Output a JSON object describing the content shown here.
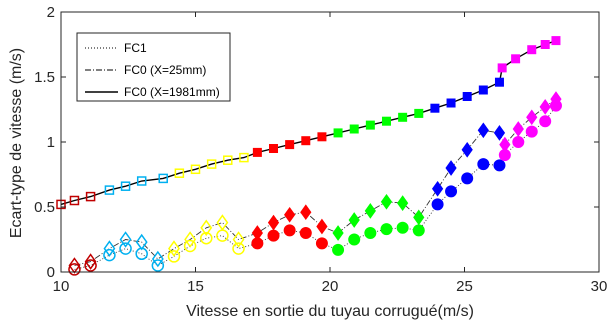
{
  "chart_data": {
    "type": "scatter",
    "title": "",
    "xlabel": "Vitesse en sortie du tuyau corrugué(m/s)",
    "ylabel": "Ecart-type de vitesse (m/s)",
    "xlim": [
      10,
      30
    ],
    "ylim": [
      0,
      2
    ],
    "xticks": [
      "10",
      "15",
      "20",
      "25",
      "30"
    ],
    "yticks": [
      "0",
      "0.5",
      "1",
      "1.5",
      "2"
    ],
    "grid": false,
    "legend_position": "top-left",
    "legend": [
      {
        "label": "FC1",
        "style": "dotted"
      },
      {
        "label": "FC0 (X=25mm)",
        "style": "dash-dot"
      },
      {
        "label": "FC0 (X=1981mm)",
        "style": "solid"
      }
    ],
    "series": [
      {
        "name": "FC0 (X=1981mm)",
        "line": "solid",
        "color": "#000000",
        "x": [
          10.0,
          10.5,
          11.1,
          11.8,
          12.4,
          13.0,
          13.8,
          14.4,
          15.0,
          15.6,
          16.2,
          16.8,
          17.3,
          17.9,
          18.5,
          19.1,
          19.7,
          20.3,
          20.9,
          21.5,
          22.1,
          22.7,
          23.3,
          23.9,
          24.5,
          25.1,
          25.7,
          26.3,
          26.4,
          26.9,
          27.5,
          28.0,
          28.4
        ],
        "y": [
          0.52,
          0.55,
          0.58,
          0.63,
          0.66,
          0.7,
          0.72,
          0.76,
          0.79,
          0.83,
          0.86,
          0.88,
          0.92,
          0.95,
          0.98,
          1.01,
          1.04,
          1.07,
          1.1,
          1.13,
          1.16,
          1.19,
          1.22,
          1.26,
          1.3,
          1.35,
          1.4,
          1.46,
          1.57,
          1.64,
          1.71,
          1.75,
          1.78
        ]
      },
      {
        "name": "FC0 (X=25mm)",
        "line": "dash-dot",
        "color": "#333333",
        "x": [
          10.5,
          11.1,
          11.8,
          12.4,
          13.0,
          13.6,
          14.2,
          14.8,
          15.4,
          16.0,
          16.6,
          17.3,
          17.9,
          18.5,
          19.1,
          19.7,
          20.3,
          20.9,
          21.5,
          22.1,
          22.7,
          23.3,
          24.0,
          24.5,
          25.1,
          25.7,
          26.3,
          26.5,
          27.0,
          27.5,
          28.0,
          28.4
        ],
        "y": [
          0.05,
          0.08,
          0.18,
          0.25,
          0.23,
          0.1,
          0.18,
          0.25,
          0.34,
          0.38,
          0.25,
          0.3,
          0.38,
          0.44,
          0.46,
          0.35,
          0.3,
          0.4,
          0.47,
          0.54,
          0.53,
          0.42,
          0.64,
          0.8,
          0.94,
          1.09,
          1.07,
          0.98,
          1.1,
          1.19,
          1.27,
          1.33
        ]
      },
      {
        "name": "FC1",
        "line": "dotted",
        "color": "#333333",
        "x": [
          10.5,
          11.1,
          11.8,
          12.4,
          13.0,
          13.6,
          14.2,
          14.8,
          15.4,
          16.0,
          16.6,
          17.3,
          17.9,
          18.5,
          19.1,
          19.7,
          20.3,
          20.9,
          21.5,
          22.1,
          22.7,
          23.3,
          24.0,
          24.5,
          25.1,
          25.7,
          26.3,
          26.5,
          27.0,
          27.5,
          28.0,
          28.4
        ],
        "y": [
          0.02,
          0.05,
          0.13,
          0.18,
          0.14,
          0.05,
          0.12,
          0.2,
          0.26,
          0.28,
          0.18,
          0.22,
          0.28,
          0.32,
          0.3,
          0.22,
          0.17,
          0.25,
          0.3,
          0.33,
          0.34,
          0.32,
          0.52,
          0.62,
          0.72,
          0.83,
          0.82,
          0.9,
          1.0,
          1.08,
          1.16,
          1.28
        ]
      }
    ],
    "segments": [
      {
        "color": "#c00000",
        "x_range": [
          10.0,
          11.5
        ],
        "filled": false
      },
      {
        "color": "#00b0f0",
        "x_range": [
          11.5,
          14.0
        ],
        "filled": false
      },
      {
        "color": "#ffff00",
        "x_range": [
          14.0,
          17.0
        ],
        "filled": false
      },
      {
        "color": "#ff0000",
        "x_range": [
          17.0,
          20.0
        ],
        "filled": true
      },
      {
        "color": "#00ff00",
        "x_range": [
          20.0,
          23.5
        ],
        "filled": true
      },
      {
        "color": "#0000ff",
        "x_range": [
          23.5,
          26.35
        ],
        "filled": true
      },
      {
        "color": "#ff00ff",
        "x_range": [
          26.35,
          29.0
        ],
        "filled": true
      }
    ],
    "markers": {
      "FC0 (X=1981mm)": "square",
      "FC0 (X=25mm)": "diamond",
      "FC1": "circle"
    }
  }
}
